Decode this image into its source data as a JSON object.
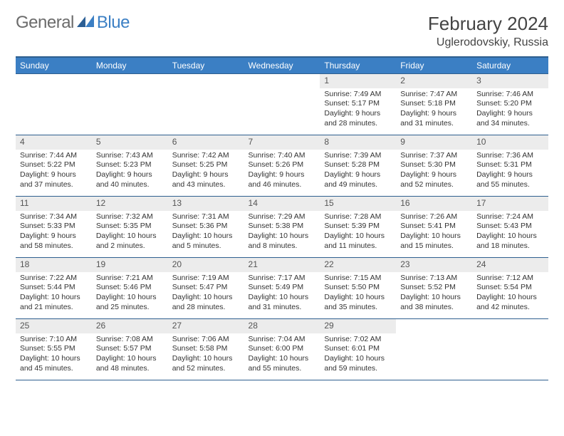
{
  "brand": {
    "part1": "General",
    "part2": "Blue"
  },
  "title": {
    "month_year": "February 2024",
    "location": "Uglerodovskiy, Russia"
  },
  "colors": {
    "header_bg": "#3b7fc4",
    "header_border": "#2e5f8f",
    "daynum_bg": "#ececec",
    "text": "#333333"
  },
  "weekdays": [
    "Sunday",
    "Monday",
    "Tuesday",
    "Wednesday",
    "Thursday",
    "Friday",
    "Saturday"
  ],
  "weeks": [
    [
      {
        "empty": true
      },
      {
        "empty": true
      },
      {
        "empty": true
      },
      {
        "empty": true
      },
      {
        "n": "1",
        "sr": "7:49 AM",
        "ss": "5:17 PM",
        "dl": "9 hours and 28 minutes."
      },
      {
        "n": "2",
        "sr": "7:47 AM",
        "ss": "5:18 PM",
        "dl": "9 hours and 31 minutes."
      },
      {
        "n": "3",
        "sr": "7:46 AM",
        "ss": "5:20 PM",
        "dl": "9 hours and 34 minutes."
      }
    ],
    [
      {
        "n": "4",
        "sr": "7:44 AM",
        "ss": "5:22 PM",
        "dl": "9 hours and 37 minutes."
      },
      {
        "n": "5",
        "sr": "7:43 AM",
        "ss": "5:23 PM",
        "dl": "9 hours and 40 minutes."
      },
      {
        "n": "6",
        "sr": "7:42 AM",
        "ss": "5:25 PM",
        "dl": "9 hours and 43 minutes."
      },
      {
        "n": "7",
        "sr": "7:40 AM",
        "ss": "5:26 PM",
        "dl": "9 hours and 46 minutes."
      },
      {
        "n": "8",
        "sr": "7:39 AM",
        "ss": "5:28 PM",
        "dl": "9 hours and 49 minutes."
      },
      {
        "n": "9",
        "sr": "7:37 AM",
        "ss": "5:30 PM",
        "dl": "9 hours and 52 minutes."
      },
      {
        "n": "10",
        "sr": "7:36 AM",
        "ss": "5:31 PM",
        "dl": "9 hours and 55 minutes."
      }
    ],
    [
      {
        "n": "11",
        "sr": "7:34 AM",
        "ss": "5:33 PM",
        "dl": "9 hours and 58 minutes."
      },
      {
        "n": "12",
        "sr": "7:32 AM",
        "ss": "5:35 PM",
        "dl": "10 hours and 2 minutes."
      },
      {
        "n": "13",
        "sr": "7:31 AM",
        "ss": "5:36 PM",
        "dl": "10 hours and 5 minutes."
      },
      {
        "n": "14",
        "sr": "7:29 AM",
        "ss": "5:38 PM",
        "dl": "10 hours and 8 minutes."
      },
      {
        "n": "15",
        "sr": "7:28 AM",
        "ss": "5:39 PM",
        "dl": "10 hours and 11 minutes."
      },
      {
        "n": "16",
        "sr": "7:26 AM",
        "ss": "5:41 PM",
        "dl": "10 hours and 15 minutes."
      },
      {
        "n": "17",
        "sr": "7:24 AM",
        "ss": "5:43 PM",
        "dl": "10 hours and 18 minutes."
      }
    ],
    [
      {
        "n": "18",
        "sr": "7:22 AM",
        "ss": "5:44 PM",
        "dl": "10 hours and 21 minutes."
      },
      {
        "n": "19",
        "sr": "7:21 AM",
        "ss": "5:46 PM",
        "dl": "10 hours and 25 minutes."
      },
      {
        "n": "20",
        "sr": "7:19 AM",
        "ss": "5:47 PM",
        "dl": "10 hours and 28 minutes."
      },
      {
        "n": "21",
        "sr": "7:17 AM",
        "ss": "5:49 PM",
        "dl": "10 hours and 31 minutes."
      },
      {
        "n": "22",
        "sr": "7:15 AM",
        "ss": "5:50 PM",
        "dl": "10 hours and 35 minutes."
      },
      {
        "n": "23",
        "sr": "7:13 AM",
        "ss": "5:52 PM",
        "dl": "10 hours and 38 minutes."
      },
      {
        "n": "24",
        "sr": "7:12 AM",
        "ss": "5:54 PM",
        "dl": "10 hours and 42 minutes."
      }
    ],
    [
      {
        "n": "25",
        "sr": "7:10 AM",
        "ss": "5:55 PM",
        "dl": "10 hours and 45 minutes."
      },
      {
        "n": "26",
        "sr": "7:08 AM",
        "ss": "5:57 PM",
        "dl": "10 hours and 48 minutes."
      },
      {
        "n": "27",
        "sr": "7:06 AM",
        "ss": "5:58 PM",
        "dl": "10 hours and 52 minutes."
      },
      {
        "n": "28",
        "sr": "7:04 AM",
        "ss": "6:00 PM",
        "dl": "10 hours and 55 minutes."
      },
      {
        "n": "29",
        "sr": "7:02 AM",
        "ss": "6:01 PM",
        "dl": "10 hours and 59 minutes."
      },
      {
        "empty": true
      },
      {
        "empty": true
      }
    ]
  ],
  "labels": {
    "sunrise": "Sunrise:",
    "sunset": "Sunset:",
    "daylight": "Daylight:"
  }
}
